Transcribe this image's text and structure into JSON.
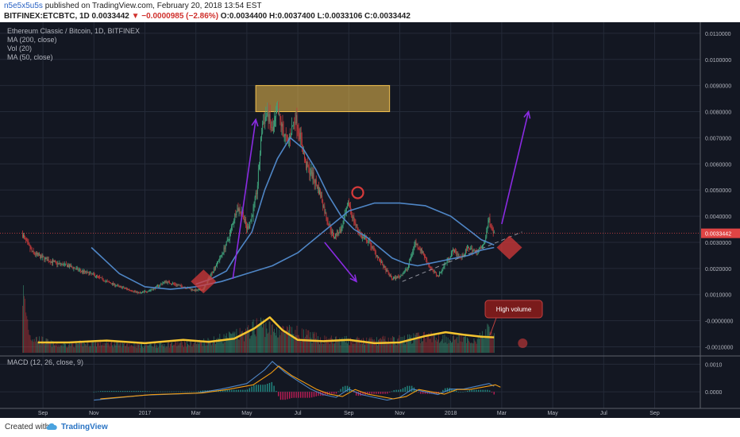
{
  "header": {
    "author": "n5e5x5u5s",
    "published_text": " published on TradingView.com, February 20, 2018 13:54 EST",
    "symbol_line_prefix": "BITFINEX:ETCBTC, 1D 0.0033442 ",
    "change": "▼ −0.0000985 (−2.86%)",
    "ohlc": " O:0.0034400 H:0.0037400 L:0.0033106 C:0.0033442"
  },
  "legend": {
    "title": "Ethereum Classic / Bitcoin, 1D, BITFINEX",
    "ma200": "MA (200, close)",
    "vol": "Vol (20)",
    "ma50": "MA (50, close)",
    "macd": "MACD (12, 26, close, 9)"
  },
  "annotations": {
    "high_volume": "High volume"
  },
  "footer": {
    "created_with": "Created with",
    "brand": "TradingView"
  },
  "colors": {
    "background": "#131722",
    "grid": "#242a38",
    "up": "#3fa37b",
    "down": "#c0393a",
    "ma200": "#4f86c6",
    "ma50": "#4f86c6",
    "volume_ma": "#f4c430",
    "box_fill": "#f2c14e",
    "arrows": "#8a2be2",
    "markers": "#d63a3a",
    "last_price": "#e04444"
  },
  "chart_data": {
    "type": "candlestick",
    "price_axis_ticks": [
      "0.0110000",
      "0.0100000",
      "0.0090000",
      "0.0080000",
      "0.0070000",
      "0.0060000",
      "0.0050000",
      "0.0040000",
      "0.0030000",
      "0.0020000",
      "0.0010000",
      "-0.0000000",
      "-0.0010000"
    ],
    "price_axis_values": [
      0.011,
      0.01,
      0.009,
      0.008,
      0.007,
      0.006,
      0.005,
      0.004,
      0.003,
      0.002,
      0.001,
      0.0,
      -0.001
    ],
    "last_price_label": "0.0033442",
    "macd_axis_ticks": [
      "0.0010",
      "0.0000"
    ],
    "macd_axis_values": [
      0.001,
      0.0
    ],
    "x_axis_ticks": [
      "Sep",
      "Nov",
      "2017",
      "Mar",
      "May",
      "Jul",
      "Sep",
      "Nov",
      "2018",
      "Mar",
      "May",
      "Jul",
      "Sep"
    ],
    "x_axis_months": [
      1,
      3,
      5,
      7,
      9,
      11,
      13,
      15,
      17,
      19,
      21,
      23,
      25
    ],
    "first_candle_month": 0.2,
    "last_candle_month": 18.7,
    "price_range": [
      0.00095,
      0.0113
    ],
    "price_keypoints": [
      [
        0.2,
        0.0033
      ],
      [
        0.35,
        0.003
      ],
      [
        0.6,
        0.0026
      ],
      [
        1.0,
        0.0024
      ],
      [
        1.5,
        0.0022
      ],
      [
        2.0,
        0.0021
      ],
      [
        2.5,
        0.0019
      ],
      [
        3.0,
        0.00175
      ],
      [
        3.5,
        0.0015
      ],
      [
        4.0,
        0.0013
      ],
      [
        4.5,
        0.00115
      ],
      [
        4.8,
        0.00105
      ],
      [
        5.3,
        0.0012
      ],
      [
        5.8,
        0.0015
      ],
      [
        6.5,
        0.0013
      ],
      [
        7.0,
        0.00115
      ],
      [
        7.3,
        0.0012
      ],
      [
        7.6,
        0.0018
      ],
      [
        8.0,
        0.0025
      ],
      [
        8.3,
        0.0032
      ],
      [
        8.6,
        0.0043
      ],
      [
        8.8,
        0.0042
      ],
      [
        9.0,
        0.0035
      ],
      [
        9.2,
        0.004
      ],
      [
        9.4,
        0.005
      ],
      [
        9.6,
        0.0075
      ],
      [
        9.8,
        0.008
      ],
      [
        10.0,
        0.0072
      ],
      [
        10.2,
        0.008
      ],
      [
        10.4,
        0.0073
      ],
      [
        10.6,
        0.0068
      ],
      [
        10.9,
        0.0078
      ],
      [
        11.1,
        0.007
      ],
      [
        11.3,
        0.006
      ],
      [
        11.6,
        0.0055
      ],
      [
        11.9,
        0.0048
      ],
      [
        12.1,
        0.004
      ],
      [
        12.4,
        0.0032
      ],
      [
        12.7,
        0.0035
      ],
      [
        13.0,
        0.0045
      ],
      [
        13.2,
        0.0038
      ],
      [
        13.5,
        0.0032
      ],
      [
        13.8,
        0.003
      ],
      [
        14.1,
        0.0025
      ],
      [
        14.4,
        0.002
      ],
      [
        14.7,
        0.0016
      ],
      [
        15.0,
        0.0017
      ],
      [
        15.3,
        0.002
      ],
      [
        15.6,
        0.003
      ],
      [
        15.9,
        0.0026
      ],
      [
        16.2,
        0.002
      ],
      [
        16.5,
        0.0017
      ],
      [
        16.8,
        0.0022
      ],
      [
        17.1,
        0.0027
      ],
      [
        17.4,
        0.0024
      ],
      [
        17.7,
        0.0028
      ],
      [
        18.0,
        0.0026
      ],
      [
        18.3,
        0.0029
      ],
      [
        18.5,
        0.0039
      ],
      [
        18.7,
        0.00334
      ]
    ],
    "ma200_keypoints": [
      [
        2.9,
        0.0028
      ],
      [
        4.0,
        0.0018
      ],
      [
        5.0,
        0.0013
      ],
      [
        6.0,
        0.0012
      ],
      [
        7.0,
        0.0013
      ],
      [
        8.0,
        0.0015
      ],
      [
        9.0,
        0.0018
      ],
      [
        10.0,
        0.0021
      ],
      [
        11.0,
        0.0026
      ],
      [
        12.0,
        0.0034
      ],
      [
        13.0,
        0.0042
      ],
      [
        14.0,
        0.0045
      ],
      [
        15.0,
        0.0045
      ],
      [
        16.0,
        0.0044
      ],
      [
        17.0,
        0.004
      ],
      [
        17.8,
        0.0034
      ],
      [
        18.2,
        0.0031
      ],
      [
        18.7,
        0.0029
      ]
    ],
    "ma50_keypoints": [
      [
        7.0,
        0.0014
      ],
      [
        7.6,
        0.0016
      ],
      [
        8.2,
        0.0019
      ],
      [
        8.7,
        0.0027
      ],
      [
        9.2,
        0.0034
      ],
      [
        9.7,
        0.005
      ],
      [
        10.2,
        0.0062
      ],
      [
        10.7,
        0.007
      ],
      [
        11.2,
        0.0066
      ],
      [
        11.7,
        0.0058
      ],
      [
        12.2,
        0.0048
      ],
      [
        12.7,
        0.004
      ],
      [
        13.2,
        0.0035
      ],
      [
        13.7,
        0.0032
      ],
      [
        14.2,
        0.0028
      ],
      [
        14.7,
        0.0024
      ],
      [
        15.2,
        0.0022
      ],
      [
        15.7,
        0.0021
      ],
      [
        16.2,
        0.0022
      ],
      [
        16.7,
        0.0023
      ],
      [
        17.2,
        0.0024
      ],
      [
        17.7,
        0.0025
      ],
      [
        18.2,
        0.0027
      ],
      [
        18.7,
        0.0028
      ]
    ],
    "volume_keypoints": [
      [
        0.2,
        0.95
      ],
      [
        0.5,
        0.25
      ],
      [
        1.5,
        0.12
      ],
      [
        3.0,
        0.15
      ],
      [
        5.0,
        0.12
      ],
      [
        7.0,
        0.15
      ],
      [
        8.0,
        0.22
      ],
      [
        9.0,
        0.3
      ],
      [
        9.5,
        0.45
      ],
      [
        10.0,
        0.35
      ],
      [
        11.0,
        0.3
      ],
      [
        12.0,
        0.2
      ],
      [
        13.5,
        0.18
      ],
      [
        15.0,
        0.2
      ],
      [
        16.0,
        0.25
      ],
      [
        17.0,
        0.22
      ],
      [
        18.0,
        0.2
      ],
      [
        18.5,
        0.35
      ],
      [
        18.7,
        0.28
      ]
    ],
    "volume_ma_keypoints": [
      [
        0.8,
        0.16
      ],
      [
        2.0,
        0.16
      ],
      [
        3.5,
        0.19
      ],
      [
        5.0,
        0.15
      ],
      [
        6.5,
        0.2
      ],
      [
        7.5,
        0.17
      ],
      [
        8.5,
        0.22
      ],
      [
        9.3,
        0.38
      ],
      [
        9.9,
        0.55
      ],
      [
        10.4,
        0.35
      ],
      [
        11.0,
        0.2
      ],
      [
        12.0,
        0.18
      ],
      [
        13.0,
        0.2
      ],
      [
        14.0,
        0.15
      ],
      [
        15.0,
        0.16
      ],
      [
        16.0,
        0.26
      ],
      [
        16.8,
        0.32
      ],
      [
        17.5,
        0.28
      ],
      [
        18.2,
        0.25
      ],
      [
        18.7,
        0.24
      ]
    ],
    "macd_keypoints": [
      [
        3.0,
        -0.0003
      ],
      [
        5.0,
        -0.00012
      ],
      [
        7.0,
        -5e-05
      ],
      [
        8.0,
        0.0001
      ],
      [
        9.0,
        0.0003
      ],
      [
        9.7,
        0.0008
      ],
      [
        10.0,
        0.0011
      ],
      [
        10.5,
        0.0007
      ],
      [
        11.0,
        0.0004
      ],
      [
        11.5,
        0.0001
      ],
      [
        12.0,
        -0.0001
      ],
      [
        12.5,
        -0.0002
      ],
      [
        13.0,
        0.0001
      ],
      [
        13.5,
        -0.0001
      ],
      [
        14.0,
        -0.0002
      ],
      [
        14.5,
        -0.0003
      ],
      [
        15.0,
        -0.0002
      ],
      [
        15.5,
        0.0001
      ],
      [
        16.0,
        0.0
      ],
      [
        16.5,
        -0.0001
      ],
      [
        17.0,
        0.0001
      ],
      [
        17.5,
        0.0001
      ],
      [
        18.0,
        0.0002
      ],
      [
        18.5,
        0.0003
      ],
      [
        18.7,
        0.0002
      ]
    ],
    "macd_range": [
      -0.0006,
      0.0013
    ],
    "resistance_box": {
      "x_range": [
        9.35,
        14.6
      ],
      "price_range": [
        0.008,
        0.009
      ]
    },
    "trendline": {
      "from": [
        15.1,
        0.0015
      ],
      "to": [
        19.8,
        0.0034
      ]
    },
    "arrows": [
      {
        "from": [
          8.45,
          0.0016
        ],
        "to": [
          9.35,
          0.0077
        ]
      },
      {
        "from": [
          12.05,
          0.003
        ],
        "to": [
          13.3,
          0.0015
        ]
      },
      {
        "from": [
          19.0,
          0.0037
        ],
        "to": [
          20.05,
          0.008
        ]
      }
    ],
    "markers": [
      [
        7.3,
        0.0015
      ],
      [
        19.3,
        0.0028
      ]
    ]
  }
}
